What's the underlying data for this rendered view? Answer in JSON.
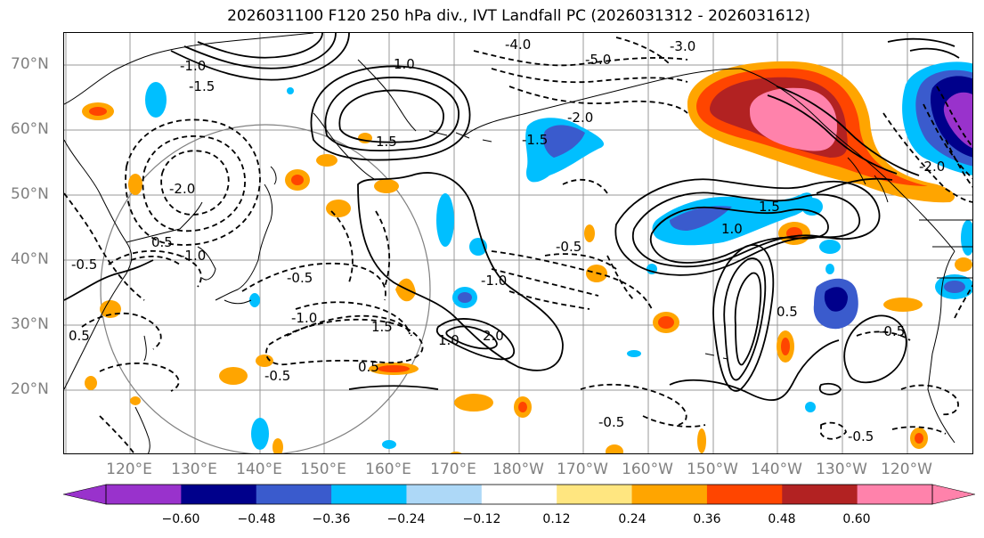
{
  "title": "2026031100 F120 250 hPa div., IVT Landfall PC (2026031312 - 2026031612)",
  "lat_labels": [
    "70°N",
    "60°N",
    "50°N",
    "40°N",
    "30°N",
    "20°N"
  ],
  "lon_labels": [
    "120°E",
    "130°E",
    "140°E",
    "150°E",
    "160°E",
    "170°E",
    "180°W",
    "170°W",
    "160°W",
    "150°W",
    "140°W",
    "130°W",
    "120°W"
  ],
  "contour_labels": [
    "-0.5",
    "-1.0",
    "-1.5",
    "-2.0",
    "0.5",
    "1.0",
    "1.5",
    "2.0",
    "-4.0",
    "-5.0",
    "-3.0",
    "-1.5",
    "-2.0",
    "-1.0",
    "-0.5",
    "-0.5",
    "1.0",
    "1.5",
    "-0.5",
    "-0.5",
    "0.5",
    "1.0",
    "-1.0",
    "-1.0",
    "1.5",
    "0.5",
    "-0.5",
    "-2.0",
    "-0.5",
    "0.5"
  ],
  "colorbar": {
    "ticks": [
      "−0.60",
      "−0.48",
      "−0.36",
      "−0.24",
      "−0.12",
      "0.12",
      "0.24",
      "0.36",
      "0.48",
      "0.60"
    ],
    "colors": [
      "#9932cc",
      "#00008b",
      "#3a5bcd",
      "#00bfff",
      "#add8f7",
      "#ffffff",
      "#ffe680",
      "#ffa500",
      "#ff4500",
      "#b22222",
      "#ff82ab"
    ],
    "extend": "both"
  },
  "colors": {
    "neg_strong": "#9932cc",
    "neg_dark": "#00008b",
    "neg_mid": "#3a5bcd",
    "neg_light": "#00bfff",
    "neg_pale": "#add8f7",
    "pos_pale": "#ffe680",
    "pos_light": "#ffa500",
    "pos_mid": "#ff4500",
    "pos_dark": "#b22222",
    "pos_strong": "#ff82ab",
    "grid": "#999999",
    "coast": "#000000"
  }
}
